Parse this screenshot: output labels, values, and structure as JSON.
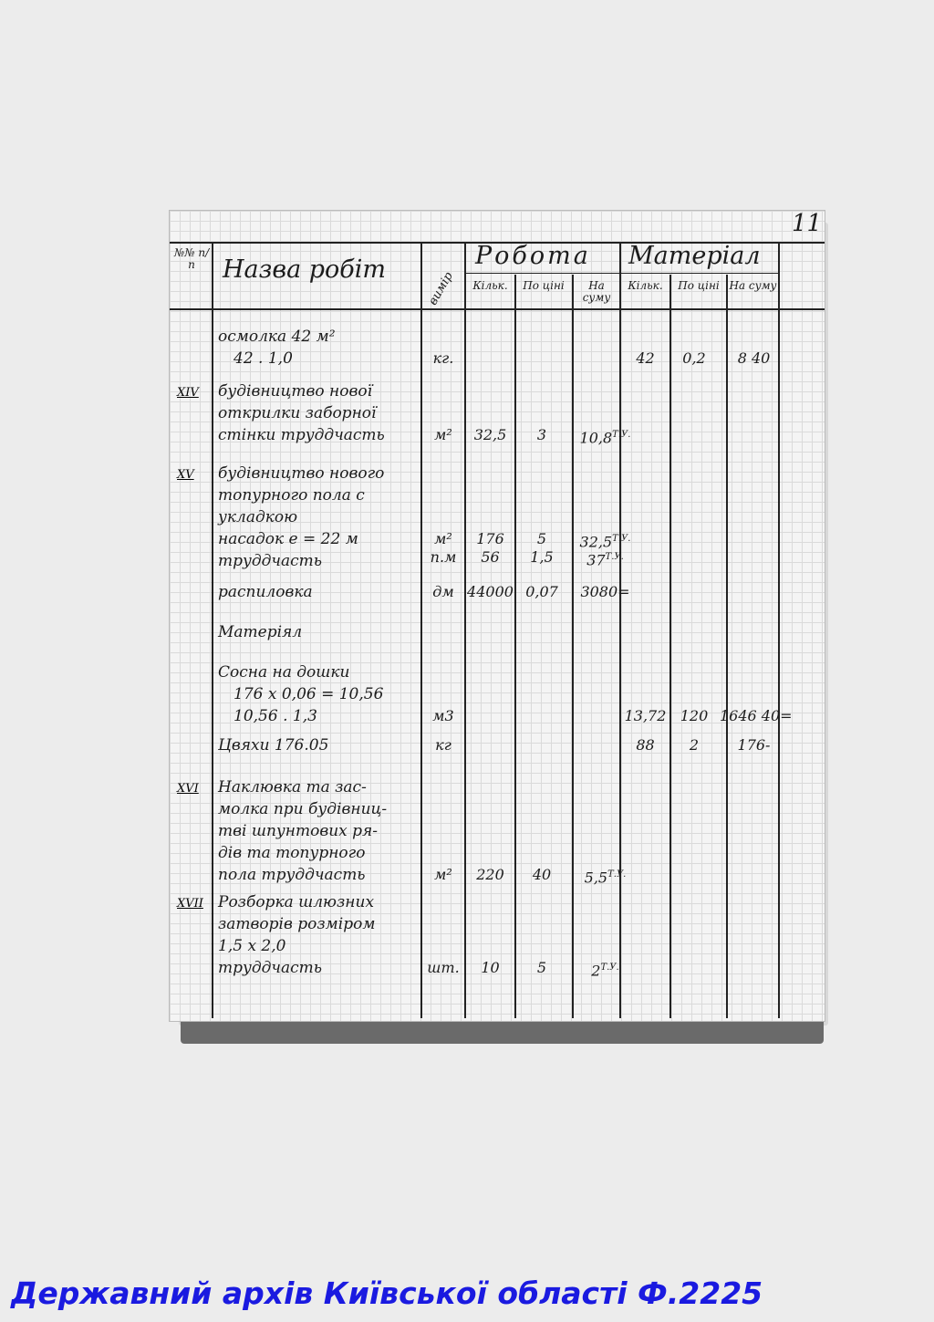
{
  "page_number": "11",
  "header": {
    "num": "№№ п/п",
    "name": "Назва робіт",
    "unit": "вимір",
    "work": "Робота",
    "material": "Матеріал",
    "qty": "Кільк.",
    "price": "По ціні",
    "sum": "На суму"
  },
  "rows": [
    {
      "num": "",
      "name": [
        "осмолка 42 м²",
        "42 . 1,0"
      ],
      "unit": [
        "кг."
      ],
      "work": [],
      "mat": [
        [
          "42",
          "0,2",
          "8 40"
        ]
      ]
    },
    {
      "num": "XIV",
      "name": [
        "будівництво нової",
        "открилки заборної",
        "стінки труддчасть"
      ],
      "unit": [
        "м²"
      ],
      "work": [
        [
          "32,5",
          "3",
          "10,8",
          "Т.У."
        ]
      ],
      "mat": []
    },
    {
      "num": "XV",
      "name": [
        "будівництво нового",
        "топурного пола с",
        "укладкою",
        "насадок e = 22 м",
        "труддчасть"
      ],
      "unit": [
        "м²",
        "п.м"
      ],
      "work": [
        [
          "176",
          "5",
          "32,5",
          "Т.У."
        ],
        [
          "56",
          "1,5",
          "37",
          "Т.У."
        ]
      ],
      "mat": []
    },
    {
      "num": "",
      "name": [
        "распиловка"
      ],
      "unit": [
        "дм"
      ],
      "work": [
        [
          "44000",
          "0,07",
          "3080=",
          ""
        ]
      ],
      "mat": []
    },
    {
      "num": "",
      "name": [
        "   Матеріял"
      ],
      "unit": [],
      "work": [],
      "mat": []
    },
    {
      "num": "",
      "name": [
        "Сосна на дошки",
        "176 x 0,06 = 10,56",
        "10,56 . 1,3"
      ],
      "unit": [
        "м3"
      ],
      "work": [],
      "mat": [
        [
          "13,72",
          "120",
          "1646 40="
        ]
      ]
    },
    {
      "num": "",
      "name": [
        "Цвяхи 176.05"
      ],
      "unit": [
        "кг"
      ],
      "work": [],
      "mat": [
        [
          "88",
          "2",
          "176-"
        ]
      ]
    },
    {
      "num": "XVI",
      "name": [
        "Наклювка та зас-",
        "молка при будівниц-",
        "тві шпунтових ря-",
        "дів та топурного",
        "пола труддчасть"
      ],
      "unit": [
        "м²"
      ],
      "work": [
        [
          "220",
          "40",
          "5,5",
          "Т.У."
        ]
      ],
      "mat": []
    },
    {
      "num": "XVII",
      "name": [
        "Розборка шлюзних",
        "затворів розміром",
        "1,5 x 2,0",
        "труддчасть"
      ],
      "unit": [
        "шт."
      ],
      "work": [
        [
          "10",
          "5",
          "2",
          "Т.У."
        ]
      ],
      "mat": []
    }
  ],
  "caption": "Державний архів Київської області Ф.2225"
}
